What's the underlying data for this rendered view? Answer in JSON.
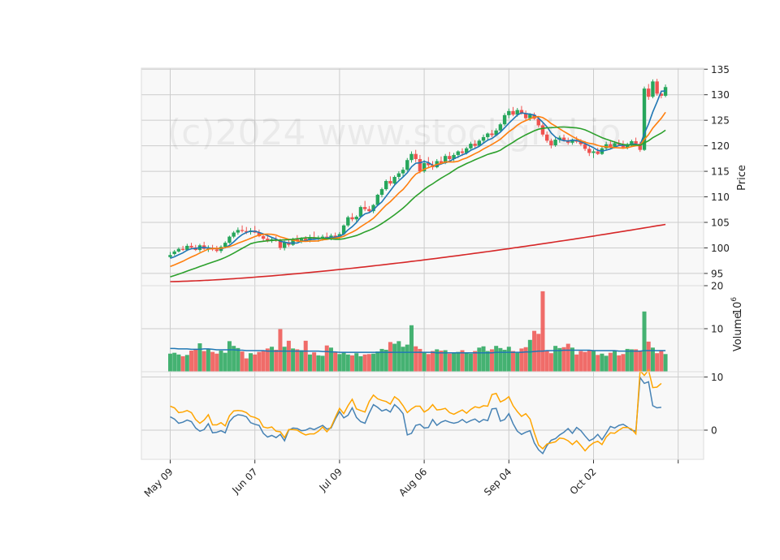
{
  "chart_data": {
    "type": "candlestick",
    "watermark": "(c)2024 www.stockgrid.io",
    "price_axis": {
      "label": "Price",
      "ticks": [
        95,
        100,
        105,
        110,
        115,
        120,
        125,
        130,
        135
      ],
      "ylim": [
        92.6,
        135.2
      ]
    },
    "volume_axis": {
      "label": "Volume",
      "exponent": "10^6",
      "ticks": [
        10,
        20
      ],
      "ylim": [
        0,
        20
      ]
    },
    "indicator_axis": {
      "ticks": [
        0,
        10
      ],
      "ylim": [
        -5.5,
        11
      ]
    },
    "x_ticks": [
      {
        "index": 0,
        "label": "May 09"
      },
      {
        "index": 20,
        "label": "Jun 07"
      },
      {
        "index": 40,
        "label": "Jul 09"
      },
      {
        "index": 60,
        "label": "Aug 06"
      },
      {
        "index": 80,
        "label": "Sep 04"
      },
      {
        "index": 100,
        "label": "Oct 02"
      },
      {
        "index": 120,
        "label": ""
      }
    ],
    "colors": {
      "up": "#26a65b",
      "down": "#ef5350",
      "ma_fast": "#1f77b4",
      "ma_mid": "#ff7f0e",
      "ma_slow": "#2ca02c",
      "ma_long": "#d62728",
      "vol_ma": "#1f77b4",
      "ind_a": "#4682b4",
      "ind_b": "#ffa500"
    },
    "candles": [
      [
        98.2,
        99.2,
        98.0,
        98.6
      ],
      [
        98.8,
        99.6,
        98.5,
        99.3
      ],
      [
        99.3,
        100.1,
        99.1,
        99.8
      ],
      [
        99.8,
        100.4,
        99.4,
        99.6
      ],
      [
        99.6,
        100.8,
        99.4,
        100.4
      ],
      [
        100.4,
        101.0,
        99.8,
        100.1
      ],
      [
        100.1,
        100.6,
        99.4,
        99.6
      ],
      [
        99.6,
        100.8,
        99.2,
        100.5
      ],
      [
        100.5,
        101.2,
        99.6,
        99.8
      ],
      [
        99.8,
        100.5,
        99.2,
        100.0
      ],
      [
        100.0,
        100.6,
        99.4,
        99.7
      ],
      [
        99.7,
        100.4,
        99.1,
        99.4
      ],
      [
        99.4,
        100.5,
        99.0,
        100.2
      ],
      [
        100.2,
        101.3,
        99.9,
        101.0
      ],
      [
        101.0,
        102.4,
        100.8,
        102.2
      ],
      [
        102.2,
        103.3,
        101.9,
        103.0
      ],
      [
        103.0,
        104.0,
        102.6,
        103.5
      ],
      [
        103.5,
        104.4,
        103.0,
        103.3
      ],
      [
        103.3,
        104.1,
        102.7,
        103.1
      ],
      [
        103.1,
        103.9,
        102.6,
        103.4
      ],
      [
        103.4,
        104.3,
        102.9,
        103.0
      ],
      [
        103.0,
        103.6,
        102.1,
        102.3
      ],
      [
        102.3,
        102.8,
        101.4,
        101.8
      ],
      [
        101.8,
        102.4,
        101.1,
        101.5
      ],
      [
        101.5,
        102.1,
        101.0,
        101.7
      ],
      [
        101.7,
        102.3,
        101.2,
        101.4
      ],
      [
        101.4,
        101.8,
        99.6,
        100.0
      ],
      [
        100.0,
        101.4,
        99.5,
        101.1
      ],
      [
        101.1,
        101.6,
        100.2,
        100.6
      ],
      [
        100.6,
        102.0,
        100.4,
        101.7
      ],
      [
        101.7,
        102.5,
        101.2,
        101.4
      ],
      [
        101.4,
        102.1,
        100.9,
        101.8
      ],
      [
        101.8,
        102.3,
        101.3,
        101.5
      ],
      [
        101.5,
        102.6,
        101.1,
        102.0
      ],
      [
        102.0,
        103.2,
        101.6,
        101.7
      ],
      [
        101.7,
        102.4,
        101.2,
        101.9
      ],
      [
        101.9,
        102.6,
        101.4,
        102.2
      ],
      [
        102.2,
        103.0,
        101.8,
        101.9
      ],
      [
        101.9,
        102.8,
        101.5,
        102.4
      ],
      [
        102.4,
        103.0,
        101.8,
        102.1
      ],
      [
        102.1,
        103.1,
        101.7,
        102.7
      ],
      [
        102.7,
        104.6,
        102.5,
        104.4
      ],
      [
        104.4,
        106.3,
        104.1,
        106.0
      ],
      [
        106.0,
        106.8,
        105.2,
        105.6
      ],
      [
        105.6,
        106.4,
        104.8,
        106.1
      ],
      [
        106.1,
        108.3,
        105.9,
        108.0
      ],
      [
        108.0,
        109.2,
        107.2,
        107.6
      ],
      [
        107.6,
        108.2,
        106.9,
        107.2
      ],
      [
        107.2,
        108.6,
        106.8,
        108.4
      ],
      [
        108.4,
        110.6,
        108.2,
        110.4
      ],
      [
        110.4,
        111.8,
        109.9,
        111.5
      ],
      [
        111.5,
        113.4,
        111.2,
        113.1
      ],
      [
        113.1,
        114.0,
        112.2,
        112.6
      ],
      [
        112.6,
        114.2,
        112.3,
        113.9
      ],
      [
        113.9,
        115.0,
        113.4,
        114.6
      ],
      [
        114.6,
        115.8,
        114.0,
        115.3
      ],
      [
        115.3,
        117.6,
        115.0,
        117.2
      ],
      [
        117.2,
        118.9,
        116.7,
        118.4
      ],
      [
        118.4,
        119.2,
        116.8,
        117.4
      ],
      [
        117.4,
        118.2,
        114.6,
        115.0
      ],
      [
        115.0,
        117.2,
        114.7,
        116.6
      ],
      [
        116.6,
        117.8,
        115.8,
        116.2
      ],
      [
        116.2,
        117.0,
        115.3,
        115.8
      ],
      [
        115.8,
        117.4,
        115.6,
        117.0
      ],
      [
        117.0,
        117.9,
        116.3,
        116.6
      ],
      [
        116.6,
        118.4,
        116.4,
        118.0
      ],
      [
        118.0,
        118.8,
        117.1,
        117.4
      ],
      [
        117.4,
        118.6,
        117.0,
        118.2
      ],
      [
        118.2,
        119.1,
        117.6,
        118.9
      ],
      [
        118.9,
        119.5,
        118.0,
        118.6
      ],
      [
        118.6,
        119.8,
        118.3,
        119.5
      ],
      [
        119.5,
        120.8,
        119.2,
        120.4
      ],
      [
        120.4,
        121.1,
        119.6,
        120.0
      ],
      [
        120.0,
        121.3,
        119.8,
        121.0
      ],
      [
        121.0,
        122.2,
        120.6,
        121.7
      ],
      [
        121.7,
        122.6,
        121.1,
        122.4
      ],
      [
        122.4,
        123.1,
        121.7,
        122.1
      ],
      [
        122.1,
        123.4,
        121.9,
        123.0
      ],
      [
        123.0,
        124.5,
        122.7,
        124.2
      ],
      [
        124.2,
        126.4,
        123.9,
        126.0
      ],
      [
        126.0,
        127.3,
        125.4,
        126.8
      ],
      [
        126.8,
        127.6,
        125.8,
        126.1
      ],
      [
        126.1,
        127.4,
        125.7,
        127.0
      ],
      [
        127.0,
        127.8,
        126.1,
        126.3
      ],
      [
        126.3,
        126.9,
        125.0,
        125.4
      ],
      [
        125.4,
        126.4,
        124.9,
        126.1
      ],
      [
        126.1,
        126.5,
        125.1,
        125.3
      ],
      [
        125.3,
        125.8,
        123.6,
        124.0
      ],
      [
        124.0,
        124.4,
        121.8,
        122.2
      ],
      [
        122.2,
        122.8,
        120.6,
        121.0
      ],
      [
        121.0,
        121.4,
        119.5,
        120.1
      ],
      [
        120.1,
        121.6,
        119.8,
        121.2
      ],
      [
        121.2,
        122.0,
        120.6,
        121.6
      ],
      [
        121.6,
        122.2,
        120.8,
        121.1
      ],
      [
        121.1,
        121.6,
        120.2,
        120.6
      ],
      [
        120.6,
        121.4,
        120.2,
        121.1
      ],
      [
        121.1,
        121.8,
        120.5,
        120.8
      ],
      [
        120.8,
        121.3,
        120.0,
        120.3
      ],
      [
        120.3,
        120.9,
        119.0,
        119.4
      ],
      [
        119.4,
        119.9,
        118.0,
        118.6
      ],
      [
        118.6,
        119.3,
        117.6,
        118.9
      ],
      [
        118.9,
        119.6,
        118.2,
        118.4
      ],
      [
        118.4,
        119.8,
        118.2,
        119.5
      ],
      [
        119.5,
        120.8,
        119.1,
        120.3
      ],
      [
        120.3,
        121.1,
        119.5,
        119.8
      ],
      [
        119.8,
        120.9,
        119.5,
        120.5
      ],
      [
        120.5,
        121.2,
        119.9,
        120.2
      ],
      [
        120.2,
        121.0,
        119.4,
        119.7
      ],
      [
        119.7,
        120.6,
        119.3,
        120.3
      ],
      [
        120.3,
        121.2,
        119.9,
        120.9
      ],
      [
        120.9,
        121.6,
        120.1,
        120.4
      ],
      [
        120.4,
        120.8,
        118.8,
        119.2
      ],
      [
        119.2,
        131.6,
        119.0,
        131.2
      ],
      [
        131.2,
        132.1,
        129.0,
        129.6
      ],
      [
        129.6,
        133.0,
        129.3,
        132.6
      ],
      [
        132.6,
        133.1,
        129.8,
        130.2
      ],
      [
        130.2,
        130.8,
        129.3,
        129.8
      ],
      [
        129.8,
        132.0,
        129.5,
        131.5
      ]
    ],
    "volume": [
      4.2,
      4.4,
      4.0,
      3.6,
      3.9,
      4.9,
      5.1,
      6.6,
      4.8,
      5.2,
      4.6,
      4.2,
      4.9,
      4.4,
      7.1,
      6.0,
      5.5,
      4.7,
      3.1,
      4.3,
      4.0,
      4.6,
      4.8,
      5.4,
      5.8,
      5.1,
      9.9,
      5.8,
      7.2,
      5.4,
      5.2,
      5.0,
      7.2,
      4.0,
      4.5,
      3.8,
      3.7,
      6.1,
      5.6,
      4.5,
      4.1,
      4.5,
      4.0,
      3.8,
      4.3,
      3.6,
      4.0,
      4.1,
      4.2,
      4.7,
      5.3,
      5.1,
      6.9,
      6.5,
      7.1,
      5.8,
      6.3,
      10.8,
      5.9,
      5.3,
      4.6,
      4.1,
      4.8,
      5.2,
      4.9,
      5.0,
      4.2,
      4.4,
      4.6,
      5.0,
      4.4,
      4.2,
      4.8,
      5.6,
      5.9,
      4.8,
      5.2,
      6.0,
      5.5,
      5.1,
      5.8,
      4.8,
      4.4,
      5.4,
      5.7,
      7.4,
      9.5,
      8.8,
      18.7,
      5.0,
      4.3,
      6.0,
      5.5,
      5.7,
      6.5,
      5.6,
      4.0,
      4.8,
      4.6,
      5.1,
      4.8,
      3.9,
      4.2,
      3.7,
      4.4,
      4.8,
      3.8,
      4.1,
      5.3,
      5.2,
      5.2,
      4.9,
      14.0,
      7.0,
      5.6,
      4.3,
      4.9,
      4.1
    ],
    "ind_a": [
      2.5,
      2.1,
      1.3,
      1.5,
      1.9,
      1.6,
      0.4,
      -0.2,
      0.1,
      1.2,
      -0.5,
      -0.4,
      -0.1,
      -0.5,
      1.6,
      2.5,
      2.9,
      2.8,
      2.5,
      1.4,
      1.1,
      0.9,
      -0.6,
      -1.3,
      -1.0,
      -1.4,
      -0.8,
      -2.0,
      0.0,
      0.4,
      0.3,
      -0.1,
      0.0,
      0.4,
      0.1,
      0.5,
      0.9,
      0.2,
      0.4,
      2.1,
      3.5,
      2.3,
      2.8,
      4.2,
      2.4,
      1.6,
      1.3,
      3.2,
      4.8,
      4.3,
      3.6,
      3.9,
      3.4,
      4.8,
      4.1,
      3.1,
      -0.9,
      -0.6,
      0.9,
      1.1,
      0.4,
      0.5,
      2.0,
      0.9,
      1.5,
      1.8,
      1.5,
      1.3,
      1.5,
      2.0,
      1.4,
      1.8,
      2.1,
      1.5,
      2.0,
      1.8,
      4.0,
      4.1,
      1.7,
      2.0,
      3.1,
      1.2,
      -0.2,
      -0.8,
      -0.4,
      -0.1,
      -2.4,
      -3.7,
      -4.4,
      -2.9,
      -1.9,
      -1.6,
      -0.9,
      -0.4,
      0.3,
      -0.6,
      0.5,
      -0.1,
      -1.1,
      -2.0,
      -1.6,
      -0.8,
      -1.8,
      -0.6,
      0.7,
      0.4,
      0.9,
      1.1,
      0.6,
      0.0,
      -0.2,
      9.9,
      8.8,
      9.1,
      4.6,
      4.2,
      4.3
    ],
    "ind_b": [
      4.5,
      4.2,
      3.3,
      3.4,
      3.7,
      3.3,
      2.0,
      1.3,
      1.9,
      2.9,
      1.0,
      1.0,
      1.4,
      0.8,
      2.7,
      3.6,
      3.7,
      3.6,
      3.3,
      2.6,
      2.4,
      2.0,
      0.6,
      0.4,
      0.6,
      -0.2,
      -0.3,
      -1.4,
      0.1,
      0.1,
      0.0,
      -0.5,
      -0.9,
      -0.7,
      -0.7,
      -0.2,
      0.6,
      -0.3,
      0.6,
      2.4,
      4.1,
      3.1,
      4.6,
      5.8,
      4.0,
      3.7,
      3.4,
      5.4,
      6.6,
      5.9,
      5.6,
      5.4,
      4.9,
      6.3,
      5.7,
      4.6,
      3.3,
      4.0,
      4.5,
      4.5,
      3.4,
      3.9,
      4.8,
      3.8,
      3.9,
      4.1,
      3.3,
      3.0,
      3.4,
      3.8,
      3.2,
      3.9,
      4.4,
      4.2,
      4.6,
      4.5,
      6.7,
      6.9,
      5.3,
      5.7,
      6.3,
      4.6,
      3.5,
      2.6,
      3.1,
      2.1,
      -0.5,
      -2.8,
      -3.5,
      -2.6,
      -2.4,
      -2.2,
      -1.5,
      -1.6,
      -2.0,
      -2.7,
      -2.0,
      -2.9,
      -3.9,
      -3.0,
      -2.4,
      -2.1,
      -2.7,
      -1.3,
      -0.5,
      -0.6,
      0.0,
      0.5,
      0.5,
      0.2,
      -0.7,
      11.2,
      10.3,
      11.3,
      8.0,
      8.1,
      8.8
    ],
    "vol_ma": [
      5.4,
      5.4,
      5.3,
      5.3,
      5.3,
      5.2,
      5.2,
      5.2,
      5.3,
      5.3,
      5.2,
      5.1,
      5.1,
      5.1,
      5.1,
      5.1,
      5.0,
      5.0,
      4.9,
      4.9,
      4.9,
      4.9,
      4.9,
      4.8,
      4.8,
      4.8,
      4.8,
      4.8,
      4.8,
      4.8,
      4.8,
      4.8,
      4.8,
      4.8,
      4.8,
      4.8,
      4.7,
      4.7,
      4.6,
      4.6,
      4.5,
      4.5,
      4.5,
      4.5,
      4.5,
      4.5,
      4.5,
      4.5,
      4.5,
      4.5,
      4.5,
      4.5,
      4.5,
      4.5,
      4.5,
      4.5,
      4.5,
      4.5,
      4.5,
      4.5,
      4.5,
      4.5,
      4.5,
      4.4,
      4.4,
      4.4,
      4.4,
      4.4,
      4.4,
      4.4,
      4.4,
      4.4,
      4.4,
      4.4,
      4.4,
      4.4,
      4.4,
      4.5,
      4.5,
      4.5,
      4.5,
      4.5,
      4.5,
      4.5,
      4.6,
      4.6,
      4.7,
      4.8,
      4.8,
      4.9,
      4.9,
      4.9,
      4.9,
      5.0,
      5.0,
      5.0,
      5.0,
      5.0,
      5.0,
      5.0,
      4.9,
      4.9,
      4.9,
      4.9,
      4.9,
      4.9,
      4.8,
      4.8,
      4.8,
      4.8,
      4.8,
      4.8,
      4.9,
      4.9,
      4.9,
      4.9,
      4.9,
      4.9
    ]
  }
}
